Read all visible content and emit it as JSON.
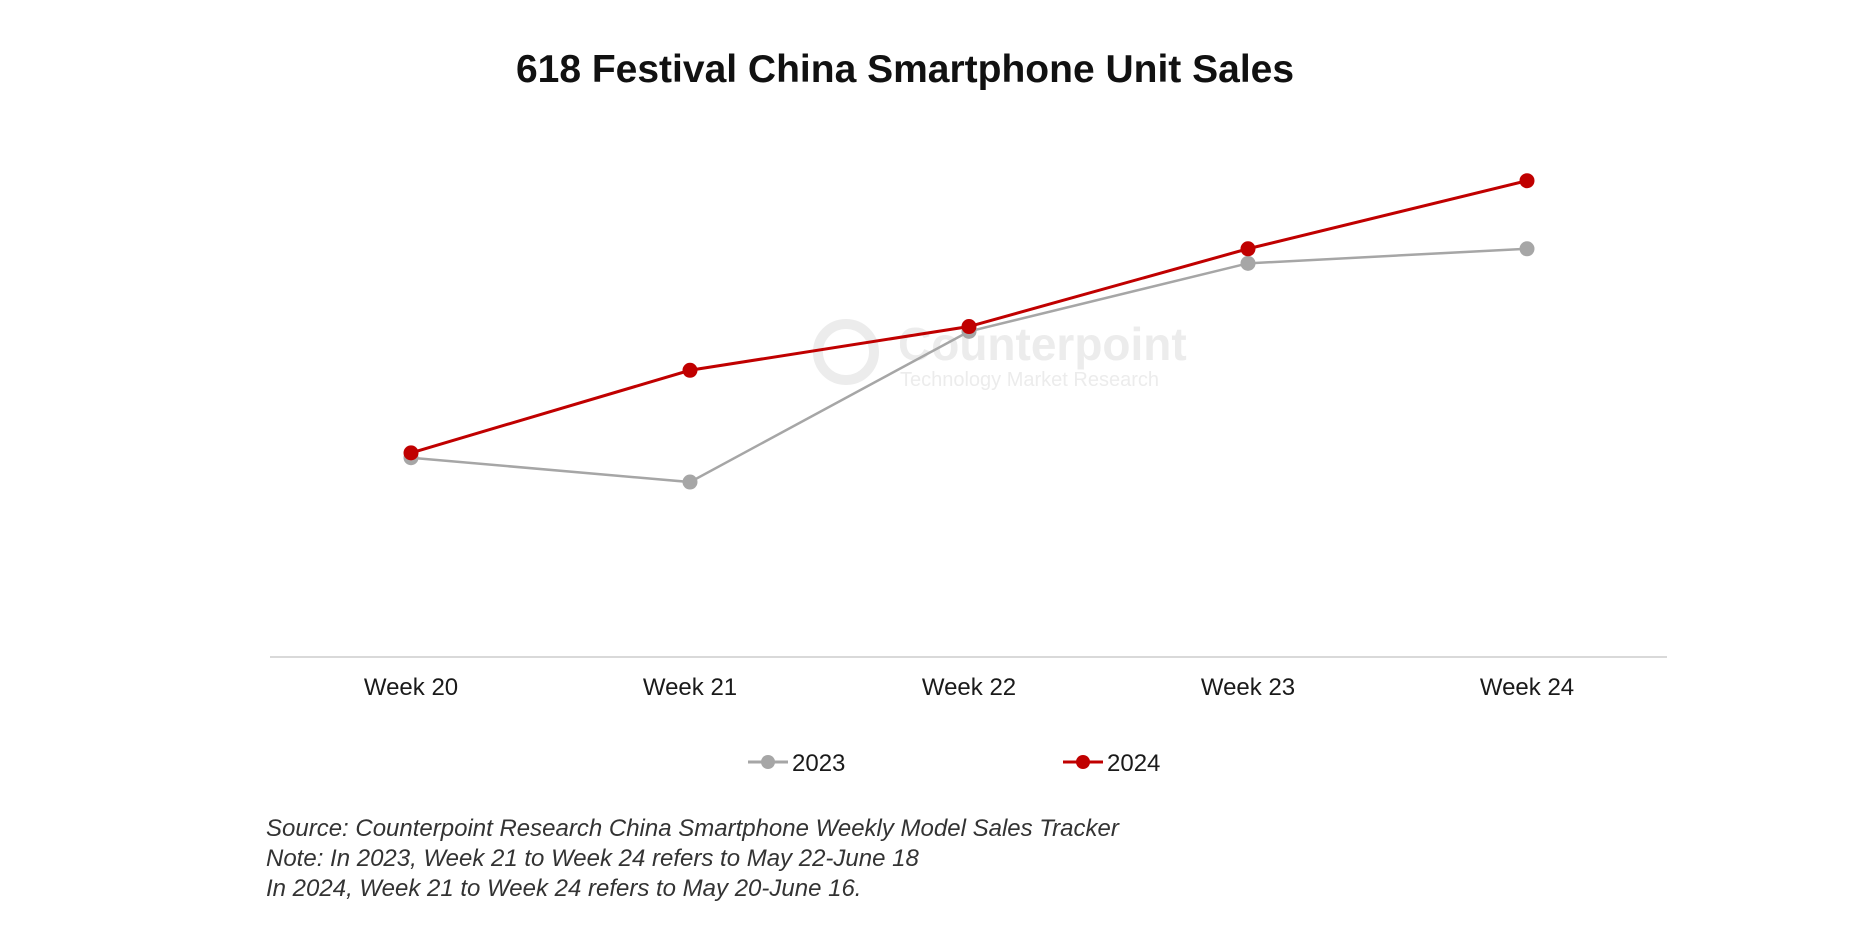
{
  "chart_data": {
    "type": "line",
    "title": "618 Festival China Smartphone Unit Sales",
    "categories": [
      "Week 20",
      "Week 21",
      "Week 22",
      "Week 23",
      "Week 24"
    ],
    "xlabel": "",
    "ylabel": "",
    "ylim": [
      0,
      100
    ],
    "grid": false,
    "legend": "bottom",
    "series": [
      {
        "name": "2023",
        "color": "#a6a6a6",
        "values": [
          41,
          36,
          67,
          81,
          84
        ]
      },
      {
        "name": "2024",
        "color": "#c00000",
        "values": [
          42,
          59,
          68,
          84,
          98
        ]
      }
    ]
  },
  "watermark": {
    "brand": "Counterpoint",
    "tagline": "Technology Market Research"
  },
  "notes": {
    "source": "Source: Counterpoint Research China Smartphone Weekly Model Sales Tracker",
    "note_2023": "Note: In 2023, Week 21 to Week 24 refers to May 22-June 18",
    "note_2024": "In 2024, Week 21 to Week 24 refers to May 20-June 16."
  }
}
